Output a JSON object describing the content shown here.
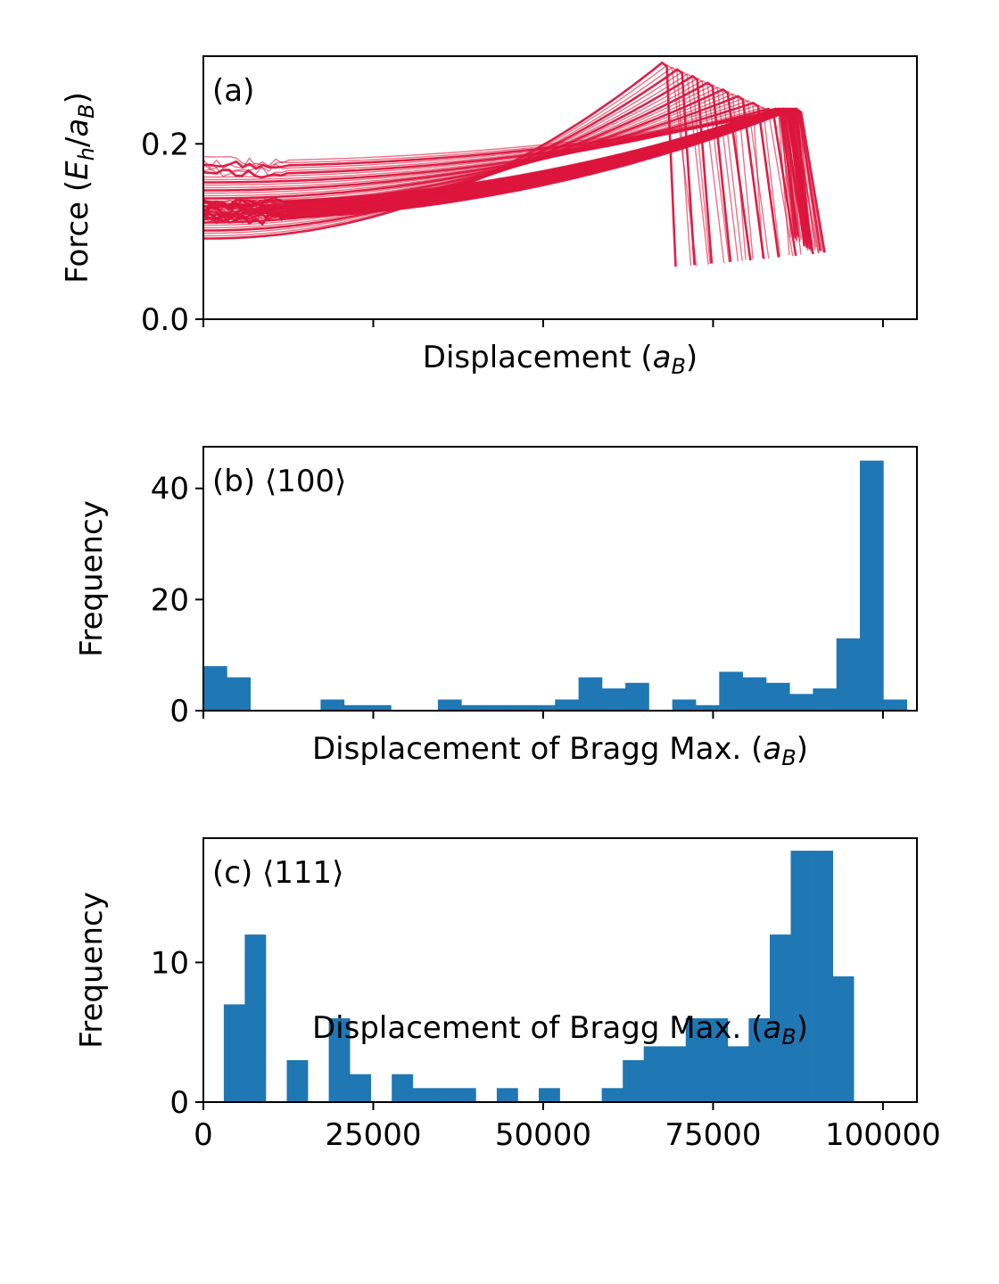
{
  "chart_data": [
    {
      "id": "a",
      "type": "line",
      "annotation": "(a)",
      "xlabel": "Displacement",
      "xlabel_unit": "B",
      "ylabel": "Force",
      "ylabel_unit": "E/a",
      "ylim": [
        0.0,
        0.3
      ],
      "xlim": [
        0,
        105000
      ],
      "yticks": [
        {
          "value": 0.0,
          "label": "0.0"
        },
        {
          "value": 0.2,
          "label": "0.2"
        }
      ],
      "xticks": [
        0,
        25000,
        50000,
        75000,
        100000
      ],
      "xtick_labels_shown": false,
      "grid": false,
      "line_color": "#dc143c",
      "curve_count": 60,
      "peak_force": 0.24,
      "end_force": 0.06
    },
    {
      "id": "b",
      "type": "bar",
      "annotation": "(b) ⟨100⟩",
      "xlabel": "Displacement of Bragg Max. (a_B)",
      "ylabel": "Frequency",
      "xlim": [
        0,
        105000
      ],
      "ylim": [
        0,
        47.5
      ],
      "yticks": [
        0,
        20,
        40
      ],
      "xticks": [
        0,
        25000,
        50000,
        75000,
        100000
      ],
      "xtick_labels_shown": false,
      "grid": false,
      "bar_color": "#1f77b4",
      "bin_start": 0,
      "bin_width": 3450,
      "values": [
        8,
        6,
        0,
        0,
        0,
        2,
        1,
        1,
        0,
        0,
        2,
        1,
        1,
        1,
        1,
        2,
        6,
        4,
        5,
        0,
        2,
        1,
        7,
        6,
        5,
        3,
        4,
        13,
        45,
        2
      ]
    },
    {
      "id": "c",
      "type": "bar",
      "annotation": "(c) ⟨111⟩",
      "xlabel": "Displacement of Bragg Max. (a_B)",
      "ylabel": "Frequency",
      "xlim": [
        0,
        105000
      ],
      "ylim": [
        0,
        18.9
      ],
      "yticks": [
        0,
        10
      ],
      "xticks": [
        0,
        25000,
        50000,
        75000,
        100000
      ],
      "xtick_labels": [
        "0",
        "25000",
        "50000",
        "75000",
        "100000"
      ],
      "grid": false,
      "bar_color": "#1f77b4",
      "bin_start": 3000,
      "bin_width": 3090,
      "values": [
        7,
        12,
        0,
        3,
        0,
        6,
        2,
        0,
        2,
        1,
        1,
        1,
        0,
        1,
        0,
        1,
        0,
        0,
        1,
        3,
        4,
        4,
        6,
        6,
        4,
        6,
        12,
        18,
        18,
        9
      ]
    }
  ]
}
